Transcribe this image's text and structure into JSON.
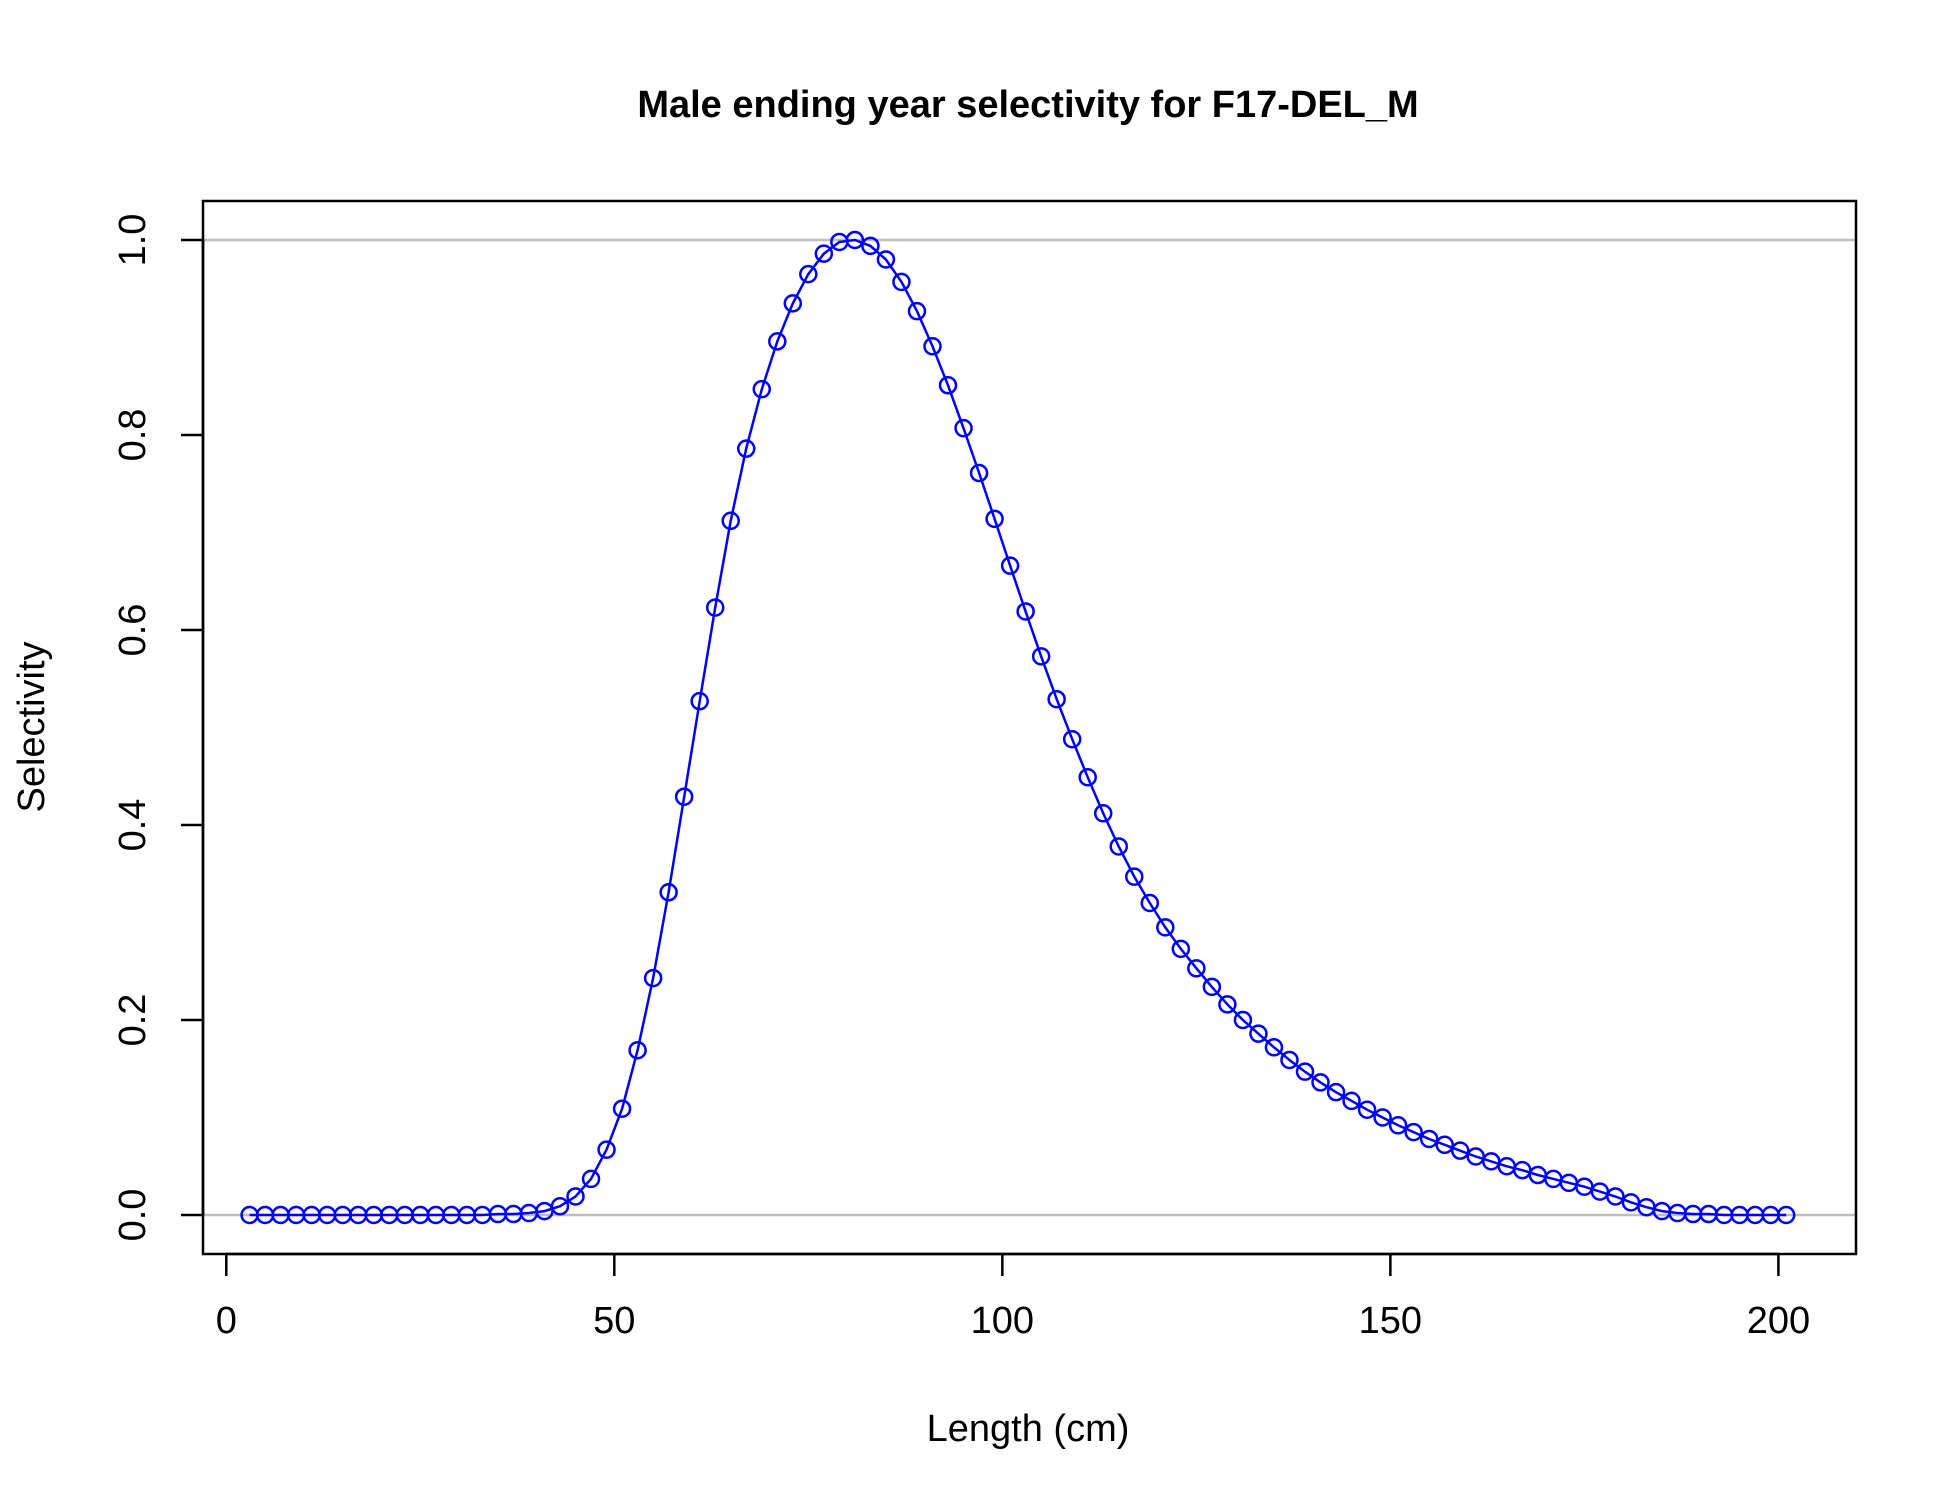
{
  "chart_data": {
    "type": "line",
    "title": "Male ending year selectivity for F17-DEL_M",
    "xlabel": "Length (cm)",
    "ylabel": "Selectivity",
    "xlim": [
      -3,
      210
    ],
    "ylim": [
      -0.04,
      1.04
    ],
    "x_ticks": [
      0,
      50,
      100,
      150,
      200
    ],
    "x_tick_labels": [
      "0",
      "50",
      "100",
      "150",
      "200"
    ],
    "y_ticks": [
      0.0,
      0.2,
      0.4,
      0.6,
      0.8,
      1.0
    ],
    "y_tick_labels": [
      "0.0",
      "0.2",
      "0.4",
      "0.6",
      "0.8",
      "1.0"
    ],
    "reference_lines": [
      0,
      1
    ],
    "colors": {
      "series": "#0000ff",
      "reference": "#bebebe",
      "axis": "#000000"
    },
    "series": [
      {
        "marker": "open-circle",
        "x": [
          3,
          5,
          7,
          9,
          11,
          13,
          15,
          17,
          19,
          21,
          23,
          25,
          27,
          29,
          31,
          33,
          35,
          37,
          39,
          41,
          43,
          45,
          47,
          49,
          51,
          53,
          55,
          57,
          59,
          61,
          63,
          65,
          67,
          69,
          71,
          73,
          75,
          77,
          79,
          81,
          83,
          85,
          87,
          89,
          91,
          93,
          95,
          97,
          99,
          101,
          103,
          105,
          107,
          109,
          111,
          113,
          115,
          117,
          119,
          121,
          123,
          125,
          127,
          129,
          131,
          133,
          135,
          137,
          139,
          141,
          143,
          145,
          147,
          149,
          151,
          153,
          155,
          157,
          159,
          161,
          163,
          165,
          167,
          169,
          171,
          173,
          175,
          177,
          179,
          181,
          183,
          185,
          187,
          189,
          191,
          193,
          195,
          197,
          199,
          201
        ],
        "y": [
          0,
          0,
          0,
          0,
          0,
          0,
          0,
          0,
          0,
          0,
          0,
          0,
          0,
          0,
          0,
          0,
          0.001,
          0.001,
          0.002,
          0.004,
          0.009,
          0.019,
          0.037,
          0.067,
          0.109,
          0.169,
          0.243,
          0.331,
          0.429,
          0.527,
          0.623,
          0.712,
          0.786,
          0.847,
          0.896,
          0.935,
          0.965,
          0.986,
          0.998,
          1.0,
          0.994,
          0.98,
          0.957,
          0.927,
          0.891,
          0.851,
          0.807,
          0.761,
          0.714,
          0.666,
          0.619,
          0.573,
          0.529,
          0.488,
          0.449,
          0.412,
          0.378,
          0.347,
          0.32,
          0.295,
          0.273,
          0.253,
          0.234,
          0.216,
          0.2,
          0.186,
          0.172,
          0.159,
          0.147,
          0.136,
          0.126,
          0.117,
          0.108,
          0.1,
          0.092,
          0.085,
          0.078,
          0.072,
          0.066,
          0.06,
          0.055,
          0.05,
          0.046,
          0.041,
          0.037,
          0.033,
          0.029,
          0.024,
          0.019,
          0.013,
          0.008,
          0.004,
          0.002,
          0.001,
          0.001,
          0,
          0,
          0,
          0,
          0
        ]
      }
    ]
  }
}
